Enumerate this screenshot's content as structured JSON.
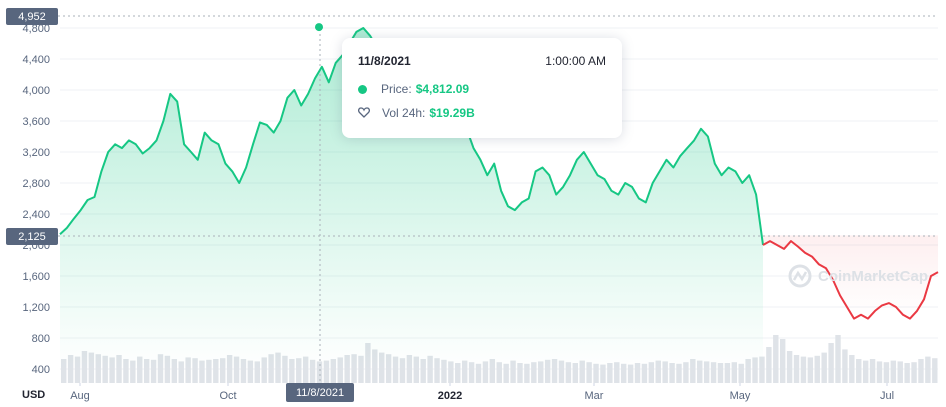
{
  "chart_data": {
    "type": "line",
    "currency_label": "USD",
    "y_ticks": [
      400,
      800,
      1200,
      1600,
      2000,
      2400,
      2800,
      3200,
      3600,
      4000,
      4400,
      4800
    ],
    "ylim": [
      200,
      5050
    ],
    "x_tick_labels": [
      {
        "label": "Aug",
        "bold": false
      },
      {
        "label": "Oct",
        "bold": false
      },
      {
        "label": "2022",
        "bold": true
      },
      {
        "label": "Mar",
        "bold": false
      },
      {
        "label": "May",
        "bold": false
      },
      {
        "label": "Jul",
        "bold": false
      }
    ],
    "high_label": "4,952",
    "start_label": "2,125",
    "hover_date_label": "11/8/2021",
    "series": [
      {
        "values": [
          2140,
          2220,
          2340,
          2450,
          2580,
          2620,
          2950,
          3200,
          3300,
          3250,
          3350,
          3300,
          3180,
          3250,
          3350,
          3600,
          3950,
          3850,
          3300,
          3200,
          3100,
          3450,
          3350,
          3300,
          3050,
          2950,
          2800,
          3000,
          3300,
          3580,
          3550,
          3450,
          3600,
          3900,
          4000,
          3800,
          3950,
          4150,
          4300,
          4100,
          4350,
          4450,
          4600,
          4750,
          4800,
          4700,
          4550,
          4300,
          3900,
          3800,
          3700,
          3850,
          3950,
          3600,
          4100,
          4000,
          3800,
          3850,
          3700,
          3500,
          3250,
          3100,
          2900,
          3050,
          2700,
          2500,
          2450,
          2550,
          2600,
          2950,
          3000,
          2900,
          2650,
          2750,
          2900,
          3100,
          3200,
          3050,
          2900,
          2850,
          2700,
          2650,
          2800,
          2750,
          2600,
          2550,
          2800,
          2950,
          3100,
          3000,
          3150,
          3250,
          3350,
          3500,
          3400,
          3050,
          2900,
          3000,
          2950,
          2800,
          2900,
          2650,
          2000
        ]
      },
      {
        "values": [
          2000,
          2050,
          2000,
          1950,
          2050,
          1980,
          1900,
          1850,
          1750,
          1700,
          1550,
          1350,
          1200,
          1050,
          1100,
          1050,
          1150,
          1220,
          1250,
          1200,
          1100,
          1050,
          1150,
          1300,
          1600,
          1650
        ]
      }
    ],
    "volume": [
      0.3,
      0.35,
      0.33,
      0.4,
      0.38,
      0.36,
      0.34,
      0.32,
      0.35,
      0.3,
      0.28,
      0.33,
      0.3,
      0.29,
      0.36,
      0.34,
      0.3,
      0.27,
      0.32,
      0.31,
      0.28,
      0.29,
      0.3,
      0.31,
      0.35,
      0.33,
      0.3,
      0.28,
      0.27,
      0.32,
      0.36,
      0.38,
      0.34,
      0.3,
      0.31,
      0.33,
      0.29,
      0.27,
      0.28,
      0.3,
      0.32,
      0.35,
      0.36,
      0.34,
      0.5,
      0.42,
      0.38,
      0.36,
      0.33,
      0.31,
      0.35,
      0.33,
      0.3,
      0.34,
      0.31,
      0.29,
      0.27,
      0.25,
      0.28,
      0.26,
      0.24,
      0.27,
      0.3,
      0.26,
      0.24,
      0.28,
      0.25,
      0.24,
      0.26,
      0.27,
      0.29,
      0.3,
      0.28,
      0.26,
      0.25,
      0.28,
      0.26,
      0.24,
      0.23,
      0.25,
      0.26,
      0.24,
      0.23,
      0.25,
      0.24,
      0.26,
      0.28,
      0.27,
      0.25,
      0.24,
      0.26,
      0.3,
      0.28,
      0.27,
      0.26,
      0.25,
      0.25,
      0.26,
      0.24,
      0.3,
      0.32,
      0.33,
      0.45,
      0.6,
      0.55,
      0.4,
      0.35,
      0.33,
      0.32,
      0.34,
      0.38,
      0.5,
      0.6,
      0.42,
      0.35,
      0.3,
      0.28,
      0.3,
      0.27,
      0.26,
      0.28,
      0.27,
      0.25,
      0.26,
      0.3,
      0.33,
      0.31
    ],
    "hover": {
      "date": "11/8/2021",
      "price": 4812.09
    }
  },
  "tooltip": {
    "date": "11/8/2021",
    "time": "1:00:00 AM",
    "price_label": "Price:",
    "price_value": "$4,812.09",
    "vol_label": "Vol 24h:",
    "vol_value": "$19.29B"
  },
  "watermark": "CoinMarketCap",
  "colors": {
    "up": "#16c784",
    "down": "#ea3943",
    "grid": "#eff2f5",
    "axis_text": "#58667e",
    "flag_bg": "#58667e",
    "volume": "#dfe3e8"
  },
  "icons": {
    "price_marker": "green-dot-icon",
    "volume_marker": "heart-outline-icon",
    "logo": "coinmarketcap-logo-icon"
  }
}
